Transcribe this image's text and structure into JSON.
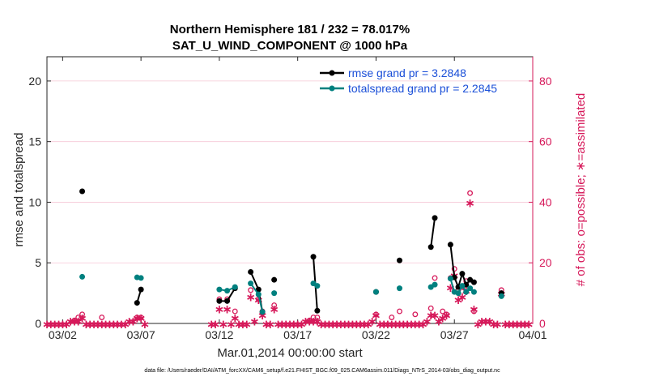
{
  "chart_data": {
    "type": "line",
    "title": "Northern Hemisphere 181 / 232 = 78.017%",
    "subtitle": "SAT_U_WIND_COMPONENT @ 1000 hPa",
    "xlabel": "Mar.01,2014 00:00:00 start",
    "ylabel": "rmse and totalspread",
    "ylabel_right": "# of obs: o=possible; ∗=assimilated",
    "xlim": [
      1,
      32
    ],
    "ylim": [
      0,
      22
    ],
    "ylim_right": [
      0,
      88
    ],
    "x_ticks": [
      2,
      7,
      12,
      17,
      22,
      27,
      32
    ],
    "x_tick_labels": [
      "03/02",
      "03/07",
      "03/12",
      "03/17",
      "03/22",
      "03/27",
      "04/01"
    ],
    "y_ticks": [
      0,
      5,
      10,
      15,
      20
    ],
    "y_ticks_right": [
      0,
      20,
      40,
      60,
      80
    ],
    "grid": true,
    "legend_position": "top-right",
    "series": [
      {
        "name": "rmse grand pr = 3.2848",
        "color": "#000000",
        "axis": "left",
        "points": [
          [
            3.25,
            10.9
          ],
          [
            null,
            null
          ],
          [
            6.75,
            1.7
          ],
          [
            7.0,
            2.8
          ],
          [
            null,
            null
          ],
          [
            12.0,
            1.85
          ],
          [
            12.5,
            1.85
          ],
          [
            13.0,
            2.9
          ],
          [
            null,
            null
          ],
          [
            14.0,
            4.25
          ],
          [
            14.5,
            2.8
          ],
          [
            14.75,
            0.95
          ],
          [
            null,
            null
          ],
          [
            15.5,
            3.6
          ],
          [
            null,
            null
          ],
          [
            18.0,
            5.5
          ],
          [
            18.25,
            1.05
          ],
          [
            null,
            null
          ],
          [
            22.0,
            2.6
          ],
          [
            null,
            null
          ],
          [
            23.5,
            5.2
          ],
          [
            null,
            null
          ],
          [
            25.5,
            6.3
          ],
          [
            25.75,
            8.7
          ],
          [
            null,
            null
          ],
          [
            26.75,
            6.5
          ],
          [
            27.0,
            3.8
          ],
          [
            27.25,
            3.0
          ],
          [
            27.5,
            4.1
          ],
          [
            27.75,
            3.2
          ],
          [
            28.0,
            3.6
          ],
          [
            28.25,
            3.4
          ],
          [
            null,
            null
          ],
          [
            30.0,
            2.5
          ]
        ]
      },
      {
        "name": "totalspread grand pr = 2.2845",
        "color": "#00807f",
        "axis": "left",
        "points": [
          [
            3.25,
            3.85
          ],
          [
            null,
            null
          ],
          [
            6.75,
            3.8
          ],
          [
            7.0,
            3.75
          ],
          [
            null,
            null
          ],
          [
            12.0,
            2.8
          ],
          [
            12.5,
            2.7
          ],
          [
            13.0,
            3.0
          ],
          [
            null,
            null
          ],
          [
            14.0,
            3.3
          ],
          [
            14.5,
            2.4
          ],
          [
            14.75,
            0.95
          ],
          [
            null,
            null
          ],
          [
            15.5,
            2.5
          ],
          [
            null,
            null
          ],
          [
            18.0,
            3.3
          ],
          [
            18.25,
            3.1
          ],
          [
            null,
            null
          ],
          [
            22.0,
            2.6
          ],
          [
            null,
            null
          ],
          [
            23.5,
            2.9
          ],
          [
            null,
            null
          ],
          [
            25.5,
            3.0
          ],
          [
            25.75,
            3.2
          ],
          [
            null,
            null
          ],
          [
            26.75,
            3.7
          ],
          [
            27.0,
            2.6
          ],
          [
            27.25,
            2.5
          ],
          [
            27.5,
            3.1
          ],
          [
            27.75,
            2.6
          ],
          [
            28.0,
            2.9
          ],
          [
            28.25,
            2.6
          ],
          [
            null,
            null
          ],
          [
            30.0,
            2.25
          ]
        ]
      }
    ],
    "obs_possible": {
      "color": "#d6195a",
      "points": [
        [
          2.75,
          1
        ],
        [
          3.0,
          2
        ],
        [
          3.25,
          3
        ],
        [
          4.5,
          2
        ],
        [
          6.75,
          2
        ],
        [
          7.0,
          2
        ],
        [
          12.0,
          8
        ],
        [
          12.5,
          8
        ],
        [
          13.0,
          4
        ],
        [
          14.0,
          11
        ],
        [
          14.5,
          8
        ],
        [
          14.75,
          4
        ],
        [
          15.5,
          6
        ],
        [
          17.75,
          1
        ],
        [
          18.0,
          2
        ],
        [
          18.25,
          2
        ],
        [
          22.0,
          3
        ],
        [
          23.0,
          2
        ],
        [
          23.5,
          4
        ],
        [
          24.5,
          3
        ],
        [
          25.5,
          5
        ],
        [
          25.75,
          15
        ],
        [
          26.25,
          4
        ],
        [
          26.5,
          3
        ],
        [
          26.75,
          15
        ],
        [
          27.0,
          18
        ],
        [
          27.25,
          11
        ],
        [
          27.5,
          12
        ],
        [
          27.75,
          14
        ],
        [
          28.0,
          43
        ],
        [
          28.25,
          4
        ],
        [
          30.0,
          11
        ]
      ]
    },
    "obs_assimilated": {
      "color": "#d6195a",
      "points": [
        [
          1.0,
          0
        ],
        [
          1.25,
          0
        ],
        [
          1.5,
          0
        ],
        [
          1.75,
          0
        ],
        [
          2.0,
          0
        ],
        [
          2.25,
          0
        ],
        [
          2.5,
          1
        ],
        [
          2.75,
          1
        ],
        [
          3.0,
          1
        ],
        [
          3.25,
          2
        ],
        [
          3.5,
          0
        ],
        [
          3.75,
          0
        ],
        [
          4.0,
          0
        ],
        [
          4.25,
          0
        ],
        [
          4.5,
          0
        ],
        [
          4.75,
          0
        ],
        [
          5.0,
          0
        ],
        [
          5.25,
          0
        ],
        [
          5.5,
          0
        ],
        [
          5.75,
          0
        ],
        [
          6.0,
          0
        ],
        [
          6.25,
          1
        ],
        [
          6.5,
          1
        ],
        [
          6.75,
          2
        ],
        [
          7.0,
          2
        ],
        [
          7.25,
          0
        ],
        [
          11.5,
          0
        ],
        [
          11.75,
          0
        ],
        [
          12.0,
          5
        ],
        [
          12.25,
          0
        ],
        [
          12.5,
          5
        ],
        [
          12.75,
          0
        ],
        [
          13.0,
          2
        ],
        [
          13.25,
          0
        ],
        [
          13.5,
          0
        ],
        [
          13.75,
          0
        ],
        [
          14.0,
          9
        ],
        [
          14.25,
          1
        ],
        [
          14.5,
          8
        ],
        [
          14.75,
          3
        ],
        [
          15.0,
          0
        ],
        [
          15.25,
          0
        ],
        [
          15.5,
          5
        ],
        [
          15.75,
          0
        ],
        [
          16.0,
          0
        ],
        [
          16.25,
          0
        ],
        [
          16.5,
          0
        ],
        [
          16.75,
          0
        ],
        [
          17.0,
          0
        ],
        [
          17.25,
          0
        ],
        [
          17.5,
          1
        ],
        [
          17.75,
          1
        ],
        [
          18.0,
          1
        ],
        [
          18.25,
          1
        ],
        [
          18.5,
          0
        ],
        [
          18.75,
          0
        ],
        [
          19.0,
          0
        ],
        [
          19.25,
          0
        ],
        [
          19.5,
          0
        ],
        [
          19.75,
          0
        ],
        [
          20.0,
          0
        ],
        [
          20.25,
          0
        ],
        [
          20.5,
          0
        ],
        [
          20.75,
          0
        ],
        [
          21.0,
          0
        ],
        [
          21.25,
          0
        ],
        [
          21.5,
          0
        ],
        [
          21.75,
          1
        ],
        [
          22.0,
          3
        ],
        [
          22.25,
          0
        ],
        [
          22.5,
          0
        ],
        [
          22.75,
          0
        ],
        [
          23.0,
          0
        ],
        [
          23.25,
          0
        ],
        [
          23.5,
          0
        ],
        [
          23.75,
          0
        ],
        [
          24.0,
          0
        ],
        [
          24.25,
          0
        ],
        [
          24.5,
          0
        ],
        [
          24.75,
          0
        ],
        [
          25.0,
          0
        ],
        [
          25.25,
          1
        ],
        [
          25.5,
          3
        ],
        [
          25.75,
          3
        ],
        [
          26.0,
          1
        ],
        [
          26.25,
          2
        ],
        [
          26.5,
          3
        ],
        [
          26.75,
          12
        ],
        [
          27.0,
          16
        ],
        [
          27.25,
          8
        ],
        [
          27.5,
          9
        ],
        [
          27.75,
          11
        ],
        [
          28.0,
          40
        ],
        [
          28.25,
          5
        ],
        [
          28.5,
          0
        ],
        [
          28.75,
          1
        ],
        [
          29.0,
          1
        ],
        [
          29.25,
          1
        ],
        [
          29.5,
          0
        ],
        [
          29.75,
          0
        ],
        [
          30.0,
          10
        ],
        [
          30.25,
          0
        ],
        [
          30.5,
          0
        ],
        [
          30.75,
          0
        ],
        [
          31.0,
          0
        ],
        [
          31.25,
          0
        ],
        [
          31.5,
          0
        ],
        [
          31.75,
          0
        ]
      ]
    },
    "footer": "data file: /Users/raeder/DAI/ATM_forcXX/CAM6_setup/f.e21.FHIST_BGC.f09_025.CAM6assim.011/Diags_NTrS_2014-03/obs_diag_output.nc"
  }
}
